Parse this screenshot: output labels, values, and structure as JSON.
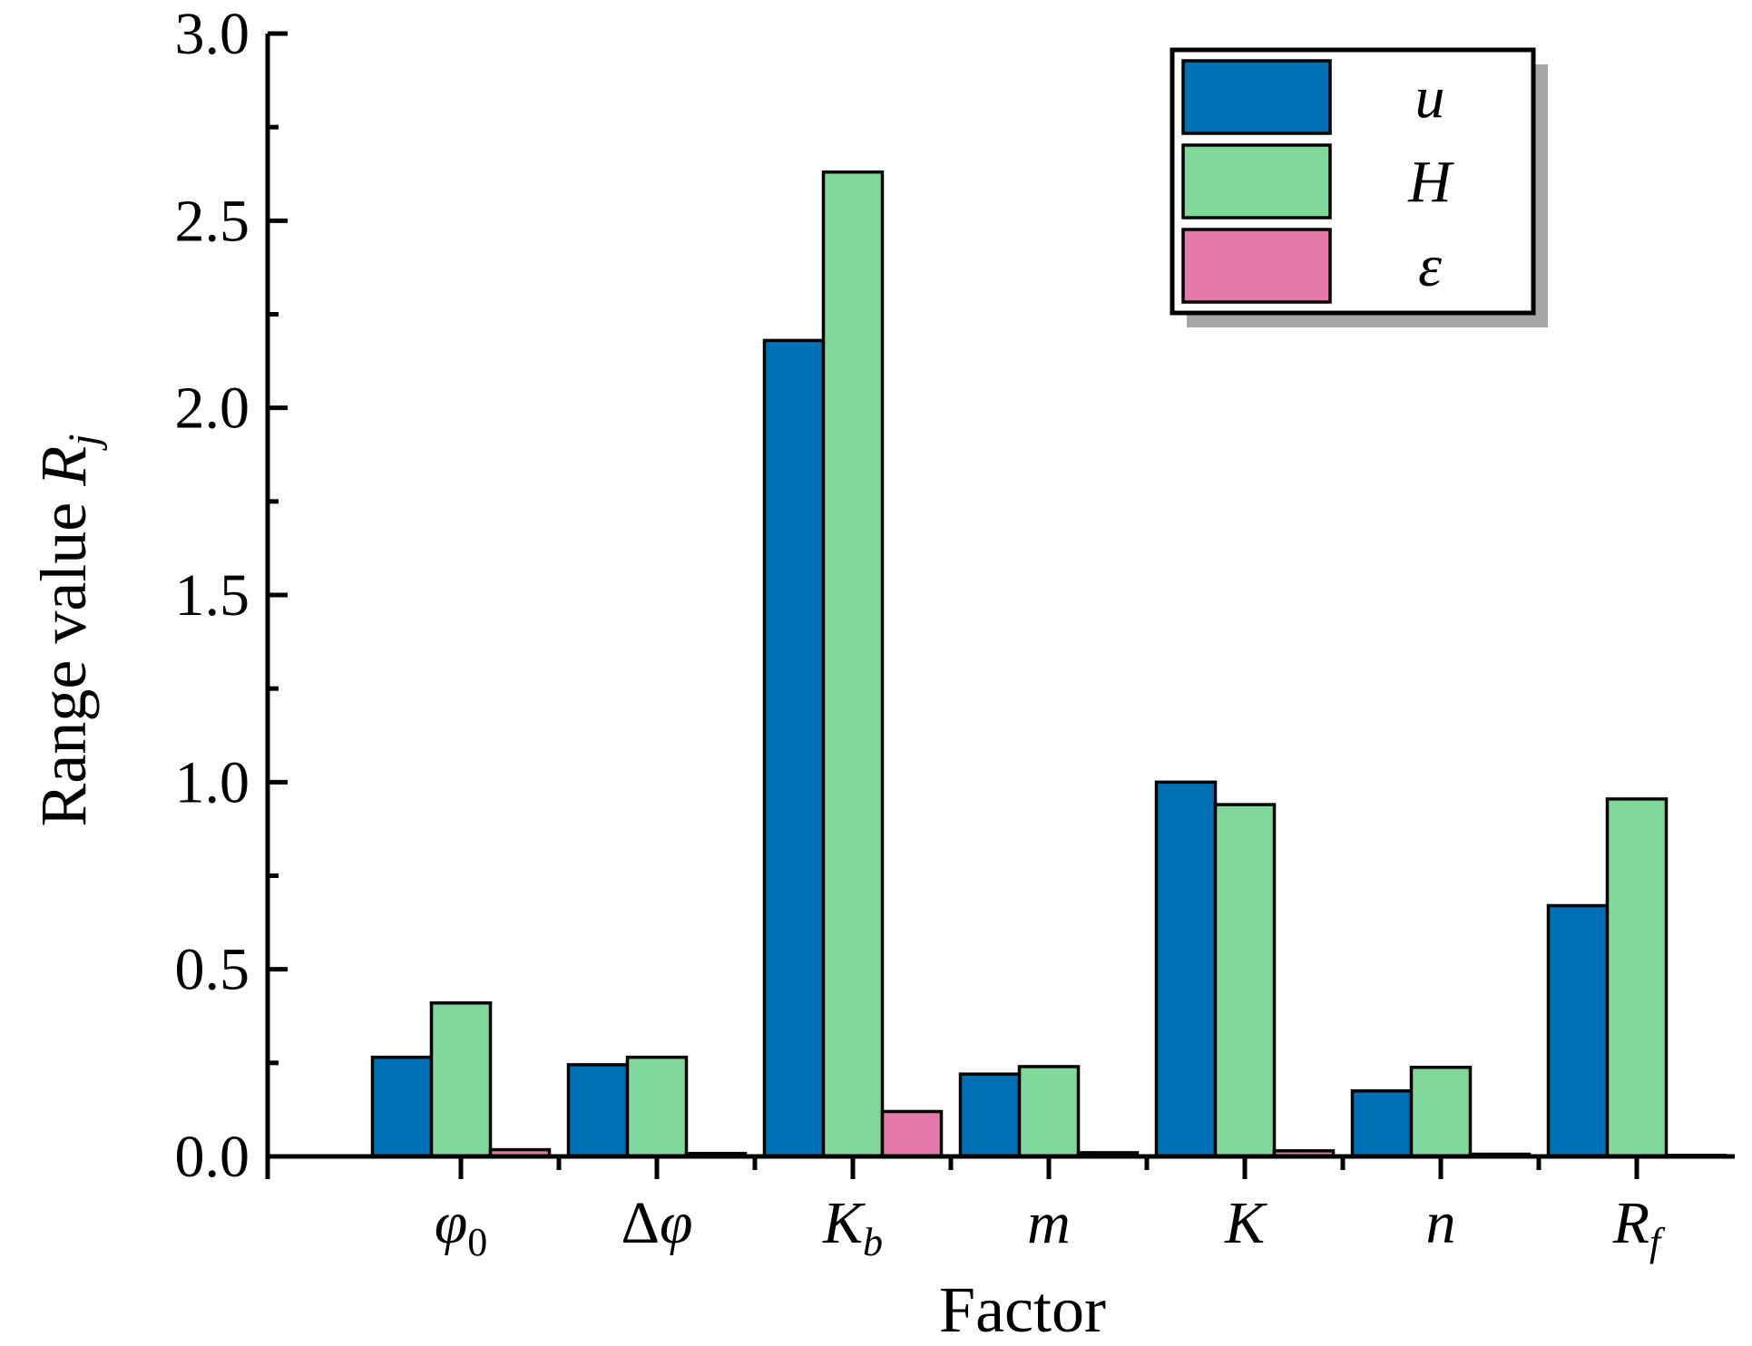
{
  "chart_data": {
    "type": "bar",
    "title": "",
    "xlabel": "Factor",
    "ylabel": {
      "main": "Range value ",
      "var": "R",
      "sub": "j"
    },
    "ylim": [
      0,
      3.0
    ],
    "yticks": [
      "0.0",
      "0.5",
      "1.0",
      "1.5",
      "2.0",
      "2.5",
      "3.0"
    ],
    "ytick_values": [
      0,
      0.5,
      1.0,
      1.5,
      2.0,
      2.5,
      3.0
    ],
    "categories": [
      {
        "id": "phi0",
        "pre": "",
        "main": "φ",
        "sub": "0",
        "sub_italic": false
      },
      {
        "id": "delta-phi",
        "pre": "Δ",
        "main": "φ",
        "sub": "",
        "sub_italic": false
      },
      {
        "id": "kb",
        "pre": "",
        "main": "K",
        "sub": "b",
        "sub_italic": true
      },
      {
        "id": "m",
        "pre": "",
        "main": "m",
        "sub": "",
        "sub_italic": false
      },
      {
        "id": "k",
        "pre": "",
        "main": "K",
        "sub": "",
        "sub_italic": false
      },
      {
        "id": "n",
        "pre": "",
        "main": "n",
        "sub": "",
        "sub_italic": false
      },
      {
        "id": "rf",
        "pre": "",
        "main": "R",
        "sub": "f",
        "sub_italic": true
      }
    ],
    "series": [
      {
        "name": "u",
        "color": "#0070B5",
        "values": [
          0.265,
          0.245,
          2.18,
          0.22,
          1.0,
          0.175,
          0.67
        ]
      },
      {
        "name": "H",
        "color": "#80D99A",
        "values": [
          0.41,
          0.265,
          2.63,
          0.24,
          0.94,
          0.238,
          0.955
        ]
      },
      {
        "name": "ε",
        "color": "#E57AAA",
        "values": [
          0.018,
          0.008,
          0.12,
          0.01,
          0.015,
          0.006,
          0.003
        ]
      }
    ],
    "legend_position": "top-right",
    "grid": false
  }
}
